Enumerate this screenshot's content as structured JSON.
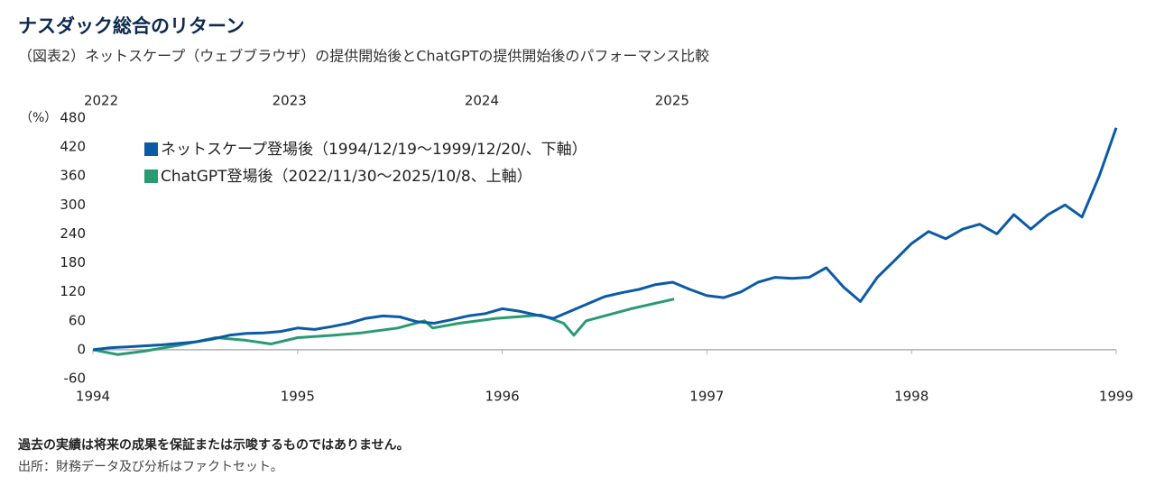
{
  "chart_data": {
    "type": "line",
    "title": "ナスダック総合のリターン",
    "subtitle": "（図表2）ネットスケープ（ウェブブラウザ）の提供開始後とChatGPTの提供開始後のパフォーマンス比較",
    "y_label": "（%）",
    "xlim": [
      1994,
      1999
    ],
    "xticks": [
      1994,
      1995,
      1996,
      1997,
      1998,
      1999
    ],
    "x2lim": [
      2022.91,
      2027.91
    ],
    "x2ticks": [
      {
        "value": 2022.95,
        "label": "2022"
      },
      {
        "value": 2023.87,
        "label": "2023"
      },
      {
        "value": 2024.81,
        "label": "2024"
      },
      {
        "value": 2025.74,
        "label": "2025"
      }
    ],
    "ylim": [
      -60,
      480
    ],
    "yticks": [
      -60,
      0,
      60,
      120,
      180,
      240,
      300,
      360,
      420,
      480
    ],
    "legend": "top-left",
    "series": [
      {
        "name": "ネットスケープ登場後（1994/12/19〜1999/12/20/、下軸）",
        "color": "#0b5aa6",
        "x": [
          1994,
          1994.083,
          1994.167,
          1994.25,
          1994.333,
          1994.417,
          1994.5,
          1994.583,
          1994.667,
          1994.75,
          1994.833,
          1994.917,
          1995,
          1995.083,
          1995.167,
          1995.25,
          1995.333,
          1995.417,
          1995.5,
          1995.583,
          1995.667,
          1995.75,
          1995.833,
          1995.917,
          1996,
          1996.083,
          1996.167,
          1996.25,
          1996.333,
          1996.417,
          1996.5,
          1996.583,
          1996.667,
          1996.75,
          1996.833,
          1996.917,
          1997,
          1997.083,
          1997.167,
          1997.25,
          1997.333,
          1997.417,
          1997.5,
          1997.583,
          1997.667,
          1997.75,
          1997.833,
          1997.917,
          1998,
          1998.083,
          1998.167,
          1998.25,
          1998.333,
          1998.417,
          1998.5,
          1998.583,
          1998.667,
          1998.75,
          1998.833,
          1998.917,
          1999
        ],
        "values": [
          0,
          4,
          6,
          8,
          10,
          13,
          16,
          22,
          30,
          34,
          35,
          38,
          45,
          42,
          48,
          55,
          65,
          70,
          68,
          58,
          55,
          62,
          70,
          75,
          85,
          80,
          72,
          65,
          80,
          95,
          110,
          118,
          125,
          135,
          140,
          125,
          112,
          108,
          120,
          140,
          150,
          148,
          150,
          170,
          130,
          100,
          150,
          185,
          220,
          245,
          230,
          250,
          260,
          240,
          280,
          250,
          280,
          300,
          275,
          360,
          460
        ]
      },
      {
        "name": "ChatGPT登場後（2022/11/30〜2025/10/8、上軸）",
        "color": "#2a9a72",
        "axis": "x2",
        "x": [
          2022.91,
          2023.03,
          2023.16,
          2023.34,
          2023.51,
          2023.65,
          2023.78,
          2023.91,
          2024.09,
          2024.22,
          2024.4,
          2024.53,
          2024.57,
          2024.7,
          2024.88,
          2025.1,
          2025.21,
          2025.26,
          2025.32,
          2025.54,
          2025.75
        ],
        "values": [
          0,
          -10,
          -3,
          10,
          25,
          20,
          12,
          25,
          30,
          35,
          45,
          60,
          45,
          55,
          65,
          72,
          55,
          30,
          60,
          85,
          105
        ]
      }
    ],
    "footnote": "過去の実績は将来の成果を保証または示唆するものではありません。",
    "source": "出所：財務データ及び分析はファクトセット。"
  }
}
